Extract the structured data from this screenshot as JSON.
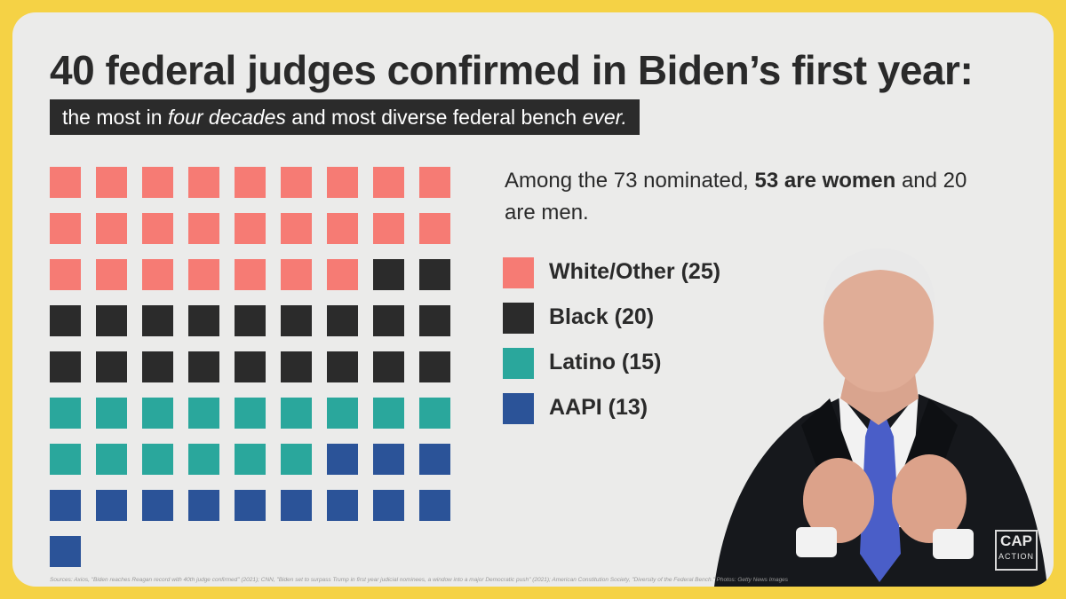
{
  "header": {
    "title": "40 federal judges confirmed in Biden’s first year:",
    "subtitle_part1": "the most in ",
    "subtitle_em1": "four decades",
    "subtitle_part2": " and most diverse federal bench ",
    "subtitle_em2": "ever."
  },
  "nominated_text": {
    "part1": "Among the 73 nominated, ",
    "bold": "53 are women",
    "part2": " and 20 are men."
  },
  "chart_data": {
    "type": "waffle",
    "title": "40 federal judges confirmed in Biden’s first year:",
    "columns": 9,
    "categories": [
      "White/Other",
      "Black",
      "Latino",
      "AAPI"
    ],
    "values": [
      25,
      20,
      15,
      13
    ],
    "colors": [
      "#f67b74",
      "#2b2b2b",
      "#2aa79c",
      "#2b5398"
    ],
    "legend_labels": [
      "White/Other (25)",
      "Black (20)",
      "Latino (15)",
      "AAPI (13)"
    ],
    "legend_position": "right"
  },
  "logo": {
    "main": "CAP",
    "sub": "ACTION"
  },
  "sources": "Sources: Axios, \"Biden reaches Reagan record with 40th judge confirmed\" (2021); CNN, \"Biden set to surpass Trump in first year judicial nominees, a window into a major Democratic push\" (2021); American Constitution Society, \"Diversity of the Federal Bench.\" Photos: Getty News Images"
}
